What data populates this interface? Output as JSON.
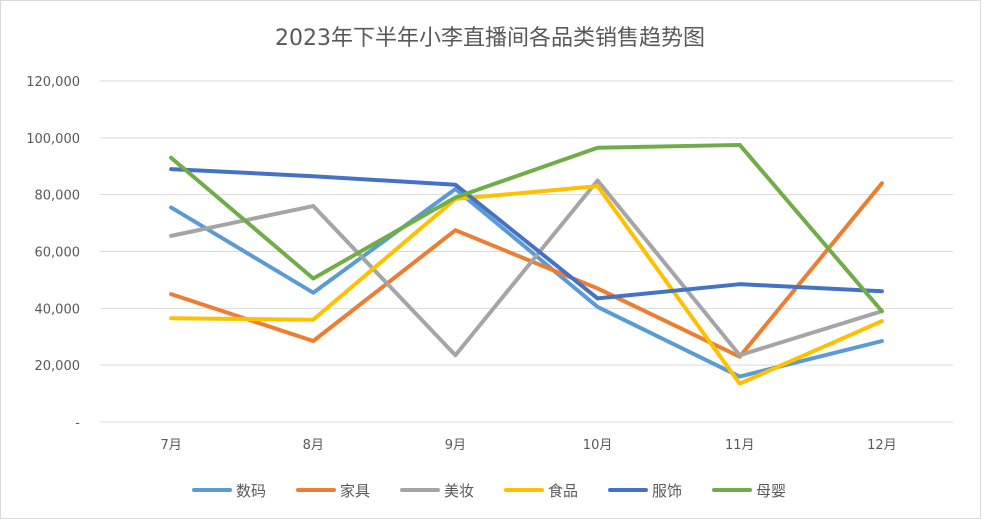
{
  "chart_data": {
    "type": "line",
    "title": "2023年下半年小李直播间各品类销售趋势图",
    "xlabel": "",
    "ylabel": "",
    "categories": [
      "7月",
      "8月",
      "9月",
      "10月",
      "11月",
      "12月"
    ],
    "yticks": [
      "-",
      "20,000",
      "40,000",
      "60,000",
      "80,000",
      "100,000",
      "120,000"
    ],
    "ylim": [
      0,
      120000
    ],
    "grid": true,
    "legend_position": "bottom",
    "series": [
      {
        "name": "数码",
        "color": "#5b9bd5",
        "values": [
          75500,
          45500,
          82000,
          40500,
          16000,
          28500
        ]
      },
      {
        "name": "家具",
        "color": "#ed7d31",
        "values": [
          45000,
          28500,
          67500,
          47000,
          23000,
          84000
        ]
      },
      {
        "name": "美妆",
        "color": "#a5a5a5",
        "values": [
          65500,
          76000,
          23500,
          85000,
          23500,
          39000
        ]
      },
      {
        "name": "食品",
        "color": "#ffc000",
        "values": [
          36500,
          36000,
          78500,
          83000,
          13500,
          35500
        ]
      },
      {
        "name": "服饰",
        "color": "#4472c4",
        "values": [
          89000,
          86500,
          83500,
          43500,
          48500,
          46000
        ]
      },
      {
        "name": "母婴",
        "color": "#70ad47",
        "values": [
          93000,
          50500,
          79000,
          96500,
          97500,
          39000
        ]
      }
    ]
  }
}
